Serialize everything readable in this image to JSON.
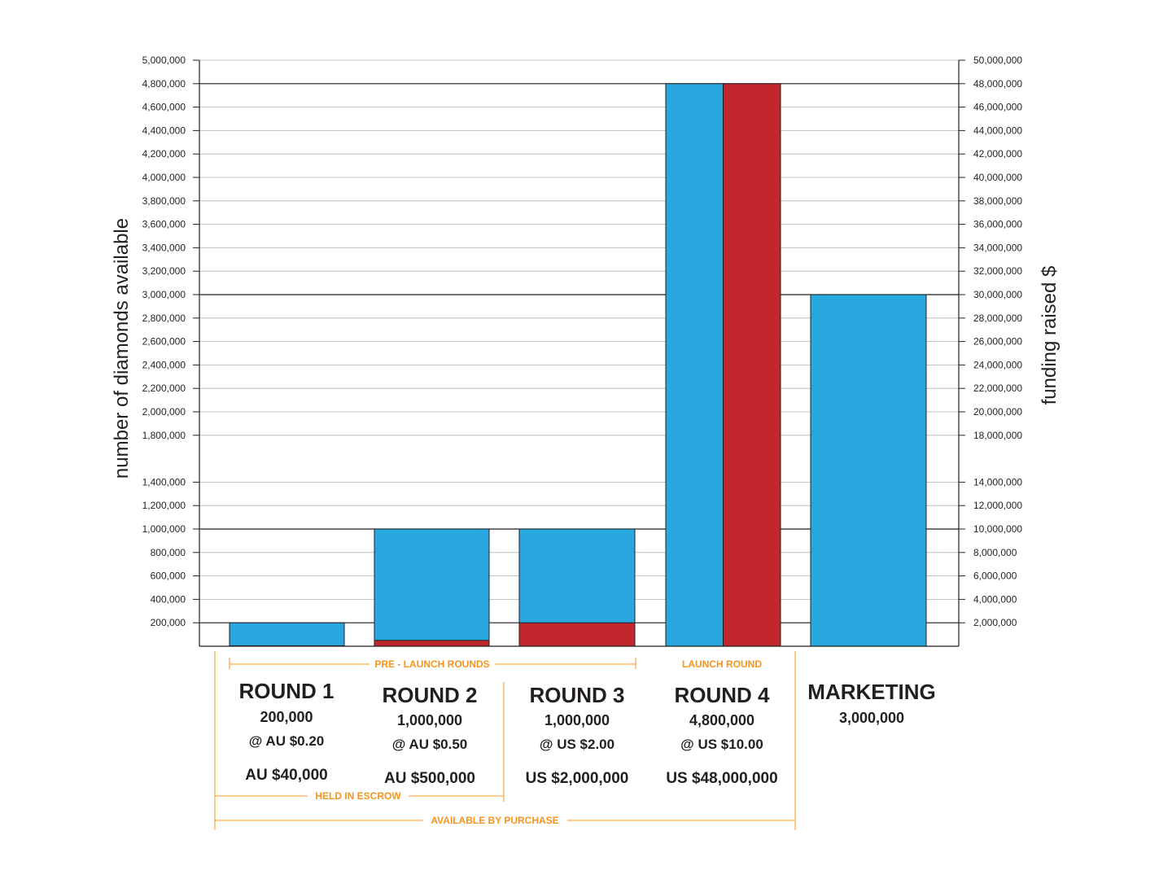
{
  "chart_data": {
    "type": "bar",
    "y_left": {
      "label": "number of diamonds available",
      "min": 0,
      "max": 5000000,
      "ticks": [
        "5,000,000",
        "4,800,000",
        "4,600,000",
        "4,400,000",
        "4,200,000",
        "4,000,000",
        "3,800,000",
        "3,600,000",
        "3,400,000",
        "3,200,000",
        "3,000,000",
        "2,800,000",
        "2,600,000",
        "2,400,000",
        "2,200,000",
        "2,000,000",
        "1,800,000",
        "1,400,000",
        "1,200,000",
        "1,000,000",
        "800,000",
        "600,000",
        "400,000",
        "200,000"
      ]
    },
    "y_right": {
      "label": "funding raised $",
      "min": 0,
      "max": 50000000,
      "ticks": [
        "50,000,000",
        "48,000,000",
        "46,000,000",
        "44,000,000",
        "42,000,000",
        "40,000,000",
        "38,000,000",
        "36,000,000",
        "34,000,000",
        "32,000,000",
        "30,000,000",
        "28,000,000",
        "26,000,000",
        "24,000,000",
        "22,000,000",
        "20,000,000",
        "18,000,000",
        "14,000,000",
        "12,000,000",
        "10,000,000",
        "8,000,000",
        "6,000,000",
        "4,000,000",
        "2,000,000"
      ]
    },
    "categories": [
      "ROUND 1",
      "ROUND 2",
      "ROUND 3",
      "ROUND 4",
      "MARKETING"
    ],
    "series": [
      {
        "values": [
          200000,
          1000000,
          1000000,
          4800000,
          3000000
        ],
        "color": "#29a8e0"
      },
      {
        "values": [
          40000,
          500000,
          2000000,
          48000000,
          null
        ],
        "color": "#c1272d"
      }
    ],
    "major_gridlines": [
      200000,
      1000000,
      3000000,
      4800000
    ],
    "grid": true,
    "rounds": [
      {
        "name": "ROUND 1",
        "quantity": "200,000",
        "price": "@  AU $0.20",
        "total": "AU $40,000"
      },
      {
        "name": "ROUND 2",
        "quantity": "1,000,000",
        "price": "@  AU $0.50",
        "total": "AU $500,000"
      },
      {
        "name": "ROUND 3",
        "quantity": "1,000,000",
        "price": "@  US $2.00",
        "total": "US $2,000,000"
      },
      {
        "name": "ROUND 4",
        "quantity": "4,800,000",
        "price": "@  US $10.00",
        "total": "US $48,000,000"
      },
      {
        "name": "MARKETING",
        "quantity": "3,000,000",
        "price": "",
        "total": ""
      }
    ],
    "annotations": {
      "pre_launch": "PRE - LAUNCH  ROUNDS",
      "launch": "LAUNCH  ROUND",
      "escrow": "HELD IN ESCROW",
      "purchase": "AVAILABLE BY PURCHASE"
    },
    "annotation_color": "#f7941d"
  }
}
